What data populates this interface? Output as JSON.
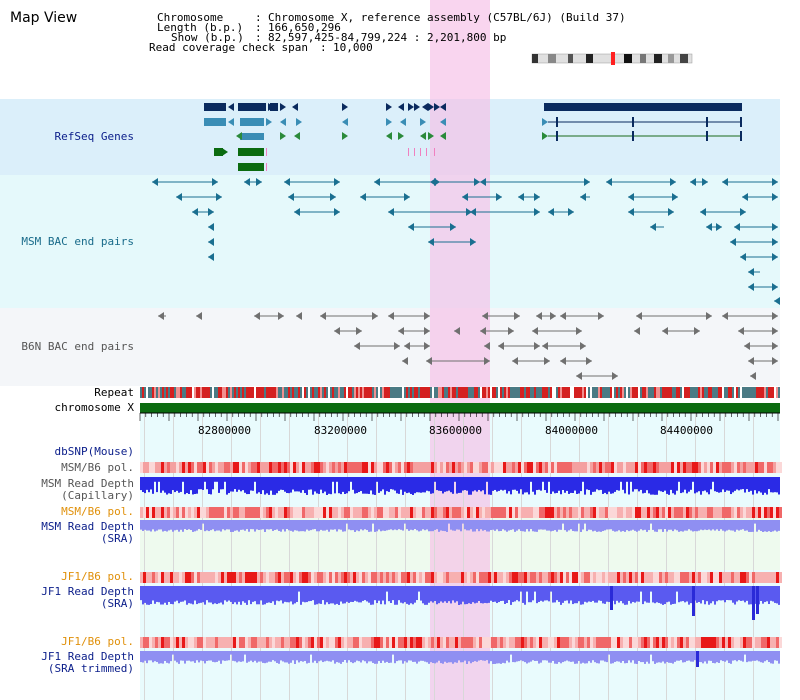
{
  "header": {
    "title": "Map View",
    "chromosome_label": "Chromosome",
    "chromosome_value": "Chromosome X, reference assembly (C57BL/6J) (Build 37)",
    "length_label": "Length (b.p.)",
    "length_value": "166,650,296",
    "show_label": "Show (b.p.)",
    "show_value": "82,597,425-84,799,224 : 2,201,800 bp",
    "coverage_label": "Read coverage check span",
    "coverage_value": "10,000"
  },
  "tracks": {
    "refseq": "RefSeq Genes",
    "msm_bac": "MSM BAC end pairs",
    "b6n_bac": "B6N BAC end pairs",
    "repeat": "Repeat",
    "chromosome": "chromosome X",
    "dbsnp": "dbSNP(Mouse)",
    "msm_b6_pol_1": "MSM/B6 pol.",
    "msm_depth_cap_1": "MSM Read Depth",
    "msm_depth_cap_2": "(Capillary)",
    "msm_b6_pol_2": "MSM/B6 pol.",
    "msm_depth_sra_1": "MSM Read Depth",
    "msm_depth_sra_2": "(SRA)",
    "jf1_b6_pol_1": "JF1/B6 pol.",
    "jf1_depth_sra_1": "JF1 Read Depth",
    "jf1_depth_sra_2": "(SRA)",
    "jf1_b6_pol_2": "JF1/B6 pol.",
    "jf1_depth_trim_1": "JF1 Read Depth",
    "jf1_depth_trim_2": "(SRA trimmed)"
  },
  "axis": {
    "ticks": [
      "82800000",
      "83200000",
      "83600000",
      "84000000",
      "84400000"
    ]
  },
  "colors": {
    "highlight": "#f6d2ef",
    "refseq_bg": "#dbeffa",
    "msm_bg": "#e5f9fb",
    "b6n_bg": "#f4f6f9",
    "chromosome": "#0b6b10",
    "depth_blue": "#2a2ae6",
    "depth_light": "#8f8ff2",
    "pol_red": "#f05a5a"
  }
}
